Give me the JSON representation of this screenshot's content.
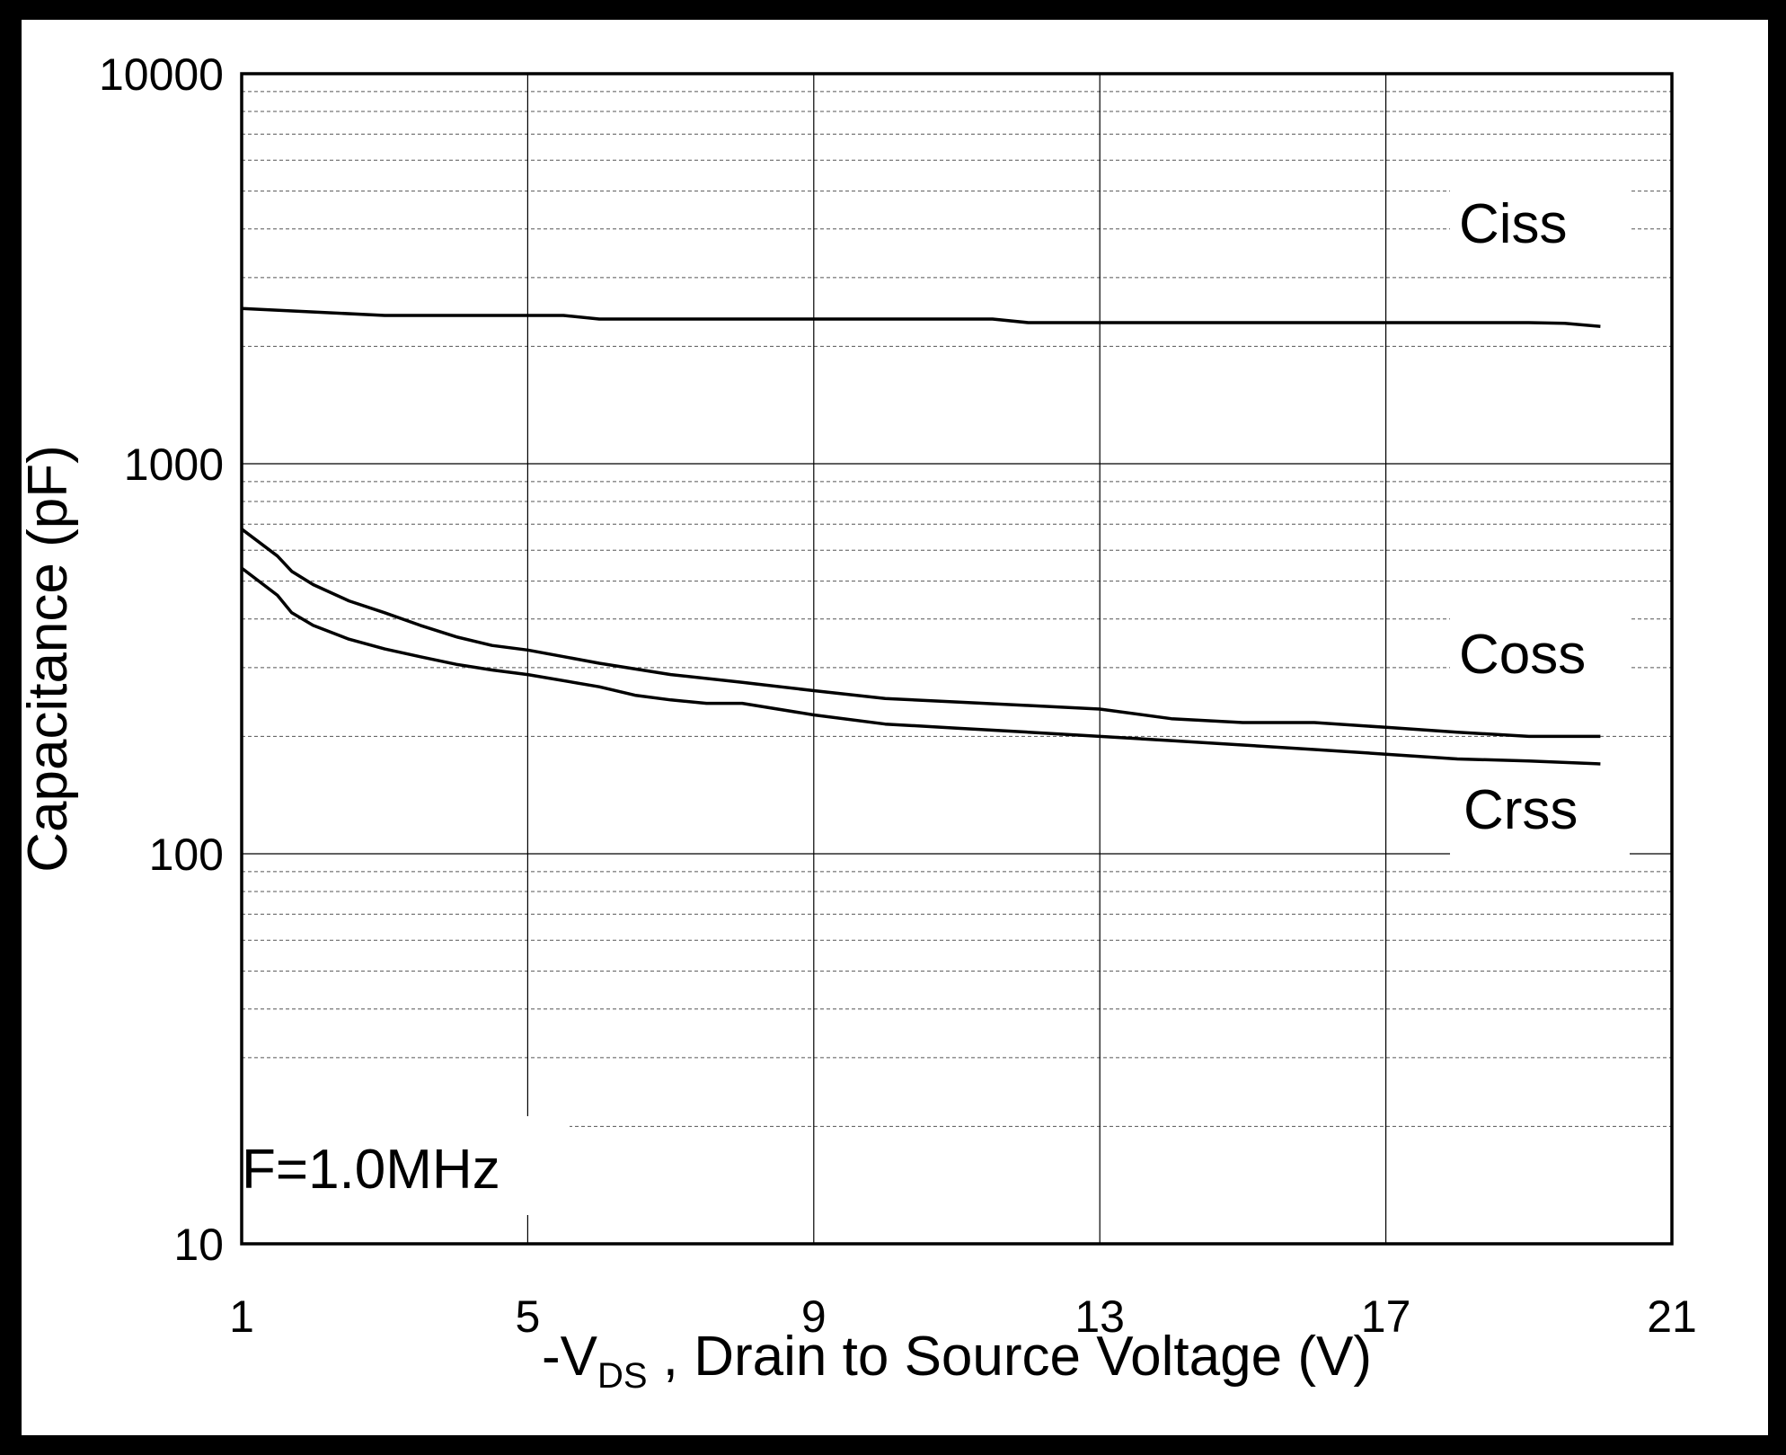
{
  "chart_data": {
    "type": "line",
    "x_scale": "linear",
    "y_scale": "log",
    "xlim": [
      1,
      21
    ],
    "ylim": [
      10,
      10000
    ],
    "x_ticks": [
      "1",
      "5",
      "9",
      "13",
      "17",
      "21"
    ],
    "y_ticks": [
      "10",
      "100",
      "1000",
      "10000"
    ],
    "xlabel_prefix": "-V",
    "xlabel_sub": "DS",
    "xlabel_suffix": " , Drain to Source Voltage (V)",
    "ylabel": "Capacitance (pF)",
    "annotation": "F=1.0MHz",
    "grid": true,
    "series": [
      {
        "name": "Ciss",
        "x": [
          1,
          2,
          3,
          4,
          5,
          5.5,
          6,
          7,
          8,
          9,
          10,
          11,
          11.5,
          12,
          13,
          14,
          15,
          16,
          17,
          18,
          19,
          19.5,
          20
        ],
        "values": [
          2500,
          2450,
          2400,
          2400,
          2400,
          2400,
          2350,
          2350,
          2350,
          2350,
          2350,
          2350,
          2350,
          2300,
          2300,
          2300,
          2300,
          2300,
          2300,
          2300,
          2300,
          2290,
          2250
        ]
      },
      {
        "name": "Coss",
        "x": [
          1,
          1.5,
          1.7,
          2,
          2.5,
          3,
          3.5,
          4,
          4.5,
          5,
          6,
          7,
          8,
          9,
          10,
          11,
          12,
          13,
          14,
          15,
          16,
          17,
          18,
          19,
          20
        ],
        "values": [
          680,
          580,
          530,
          490,
          445,
          415,
          385,
          360,
          342,
          333,
          308,
          288,
          275,
          262,
          250,
          245,
          240,
          235,
          222,
          217,
          217,
          211,
          205,
          200,
          200
        ]
      },
      {
        "name": "Crss",
        "x": [
          1,
          1.5,
          1.7,
          2,
          2.5,
          3,
          3.5,
          4,
          4.5,
          5,
          6,
          6.5,
          7,
          7.5,
          8,
          9,
          10,
          11,
          12,
          13,
          14,
          15,
          16,
          17,
          18,
          19,
          20
        ],
        "values": [
          540,
          460,
          415,
          385,
          355,
          335,
          320,
          306,
          296,
          288,
          268,
          255,
          248,
          243,
          243,
          227,
          215,
          210,
          205,
          200,
          195,
          190,
          185,
          180,
          175,
          173,
          170
        ]
      }
    ]
  }
}
